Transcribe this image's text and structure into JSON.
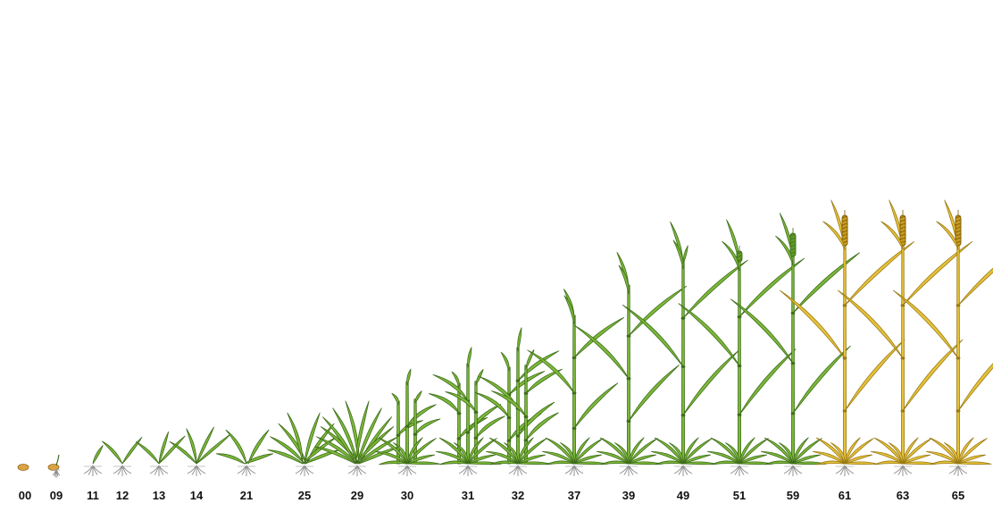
{
  "diagram": {
    "stages": [
      {
        "code": "00",
        "kind": "seed"
      },
      {
        "code": "09",
        "kind": "germination"
      },
      {
        "code": "11",
        "kind": "seedling",
        "leaves": 1
      },
      {
        "code": "12",
        "kind": "seedling",
        "leaves": 2
      },
      {
        "code": "13",
        "kind": "seedling",
        "leaves": 3
      },
      {
        "code": "14",
        "kind": "seedling",
        "leaves": 4
      },
      {
        "code": "21",
        "kind": "tillering",
        "tillers": 1
      },
      {
        "code": "25",
        "kind": "tillering",
        "tillers": 5
      },
      {
        "code": "29",
        "kind": "tillering",
        "tillers": 9
      },
      {
        "code": "30",
        "kind": "stem-elongation",
        "nodes": 0
      },
      {
        "code": "31",
        "kind": "stem-elongation",
        "nodes": 1
      },
      {
        "code": "32",
        "kind": "stem-elongation",
        "nodes": 2
      },
      {
        "code": "37",
        "kind": "flag-leaf"
      },
      {
        "code": "39",
        "kind": "flag-leaf"
      },
      {
        "code": "49",
        "kind": "booting"
      },
      {
        "code": "51",
        "kind": "heading"
      },
      {
        "code": "59",
        "kind": "heading"
      },
      {
        "code": "61",
        "kind": "ripening"
      },
      {
        "code": "63",
        "kind": "ripening"
      },
      {
        "code": "65",
        "kind": "ripening"
      }
    ],
    "colors": {
      "leaf_green": "#7cb83a",
      "leaf_dark": "#3f6e1a",
      "ripe_yellow": "#e6c23a",
      "ripe_dark": "#9a7a14",
      "root": "#8a8a8a",
      "seed": "#d9a441"
    }
  }
}
